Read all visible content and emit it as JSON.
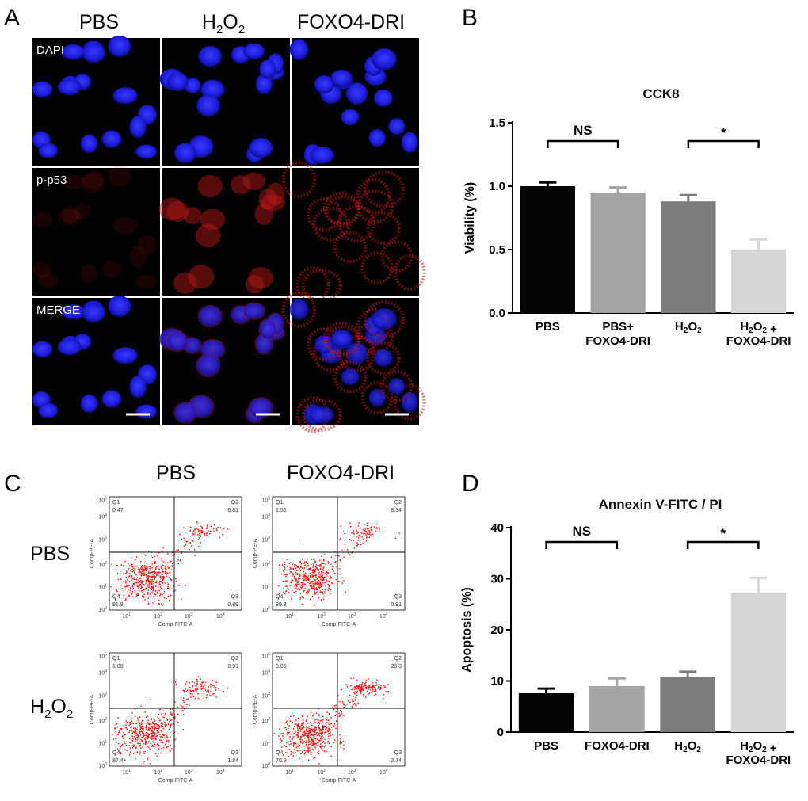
{
  "colors": {
    "nucleus": "#2020e0",
    "p53": "#c01818",
    "scatter": "#ff0000",
    "bar_black": "#050505",
    "bar_gray1": "#a4a4a4",
    "bar_gray2": "#7c7c7c",
    "bar_gray3": "#d6d6d6"
  },
  "panel_a": {
    "label": "A",
    "columns": [
      "PBS",
      "H2O2",
      "FOXO4-DRI"
    ],
    "rows": [
      "DAPI",
      "p-p53",
      "MERGE"
    ]
  },
  "panel_b": {
    "label": "B"
  },
  "panel_c": {
    "label": "C",
    "columns": [
      "PBS",
      "FOXO4-DRI"
    ],
    "rows": [
      "PBS",
      "H2O2"
    ],
    "x_axis": "Comp-FITC-A",
    "y_axis": "Comp-PE-A",
    "quadrant_names": [
      "Q1",
      "Q2",
      "Q3",
      "Q4"
    ],
    "plots": [
      {
        "Q1": "0.47",
        "Q2": "6.81",
        "Q3": "0.89",
        "Q4": "91.8"
      },
      {
        "Q1": "1.56",
        "Q2": "8.34",
        "Q3": "0.81",
        "Q4": "89.3"
      },
      {
        "Q1": "1.88",
        "Q2": "8.93",
        "Q3": "1.84",
        "Q4": "87.4"
      },
      {
        "Q1": "3.06",
        "Q2": "23.3",
        "Q3": "2.74",
        "Q4": "70.9"
      }
    ]
  },
  "panel_d": {
    "label": "D"
  },
  "chart_data": [
    {
      "type": "bar",
      "title": "CCK8",
      "ylabel": "Viability (%)",
      "xlabel": "",
      "categories": [
        "PBS",
        "PBS+ FOXO4-DRI",
        "H2O2",
        "H2O2 + FOXO4-DRI"
      ],
      "values": [
        1.0,
        0.95,
        0.88,
        0.5
      ],
      "errors": [
        0.03,
        0.04,
        0.05,
        0.08
      ],
      "ylim": [
        0,
        1.5
      ],
      "yticks": [
        "0.0",
        "0.5",
        "1.0",
        "1.5"
      ],
      "significance": [
        {
          "from": 0,
          "to": 1,
          "label": "NS"
        },
        {
          "from": 2,
          "to": 3,
          "label": "*"
        }
      ]
    },
    {
      "type": "bar",
      "title": "Annexin V-FITC / PI",
      "ylabel": "Apoptosis (%)",
      "xlabel": "",
      "categories": [
        "PBS",
        "FOXO4-DRI",
        "H2O2",
        "H2O2 + FOXO4-DRI"
      ],
      "values": [
        7.6,
        9.0,
        10.8,
        27.3
      ],
      "errors": [
        0.9,
        1.5,
        1.0,
        2.9
      ],
      "ylim": [
        0,
        40
      ],
      "yticks": [
        "0",
        "10",
        "20",
        "30",
        "40"
      ],
      "significance": [
        {
          "from": 0,
          "to": 1,
          "label": "NS"
        },
        {
          "from": 2,
          "to": 3,
          "label": "*"
        }
      ]
    }
  ]
}
